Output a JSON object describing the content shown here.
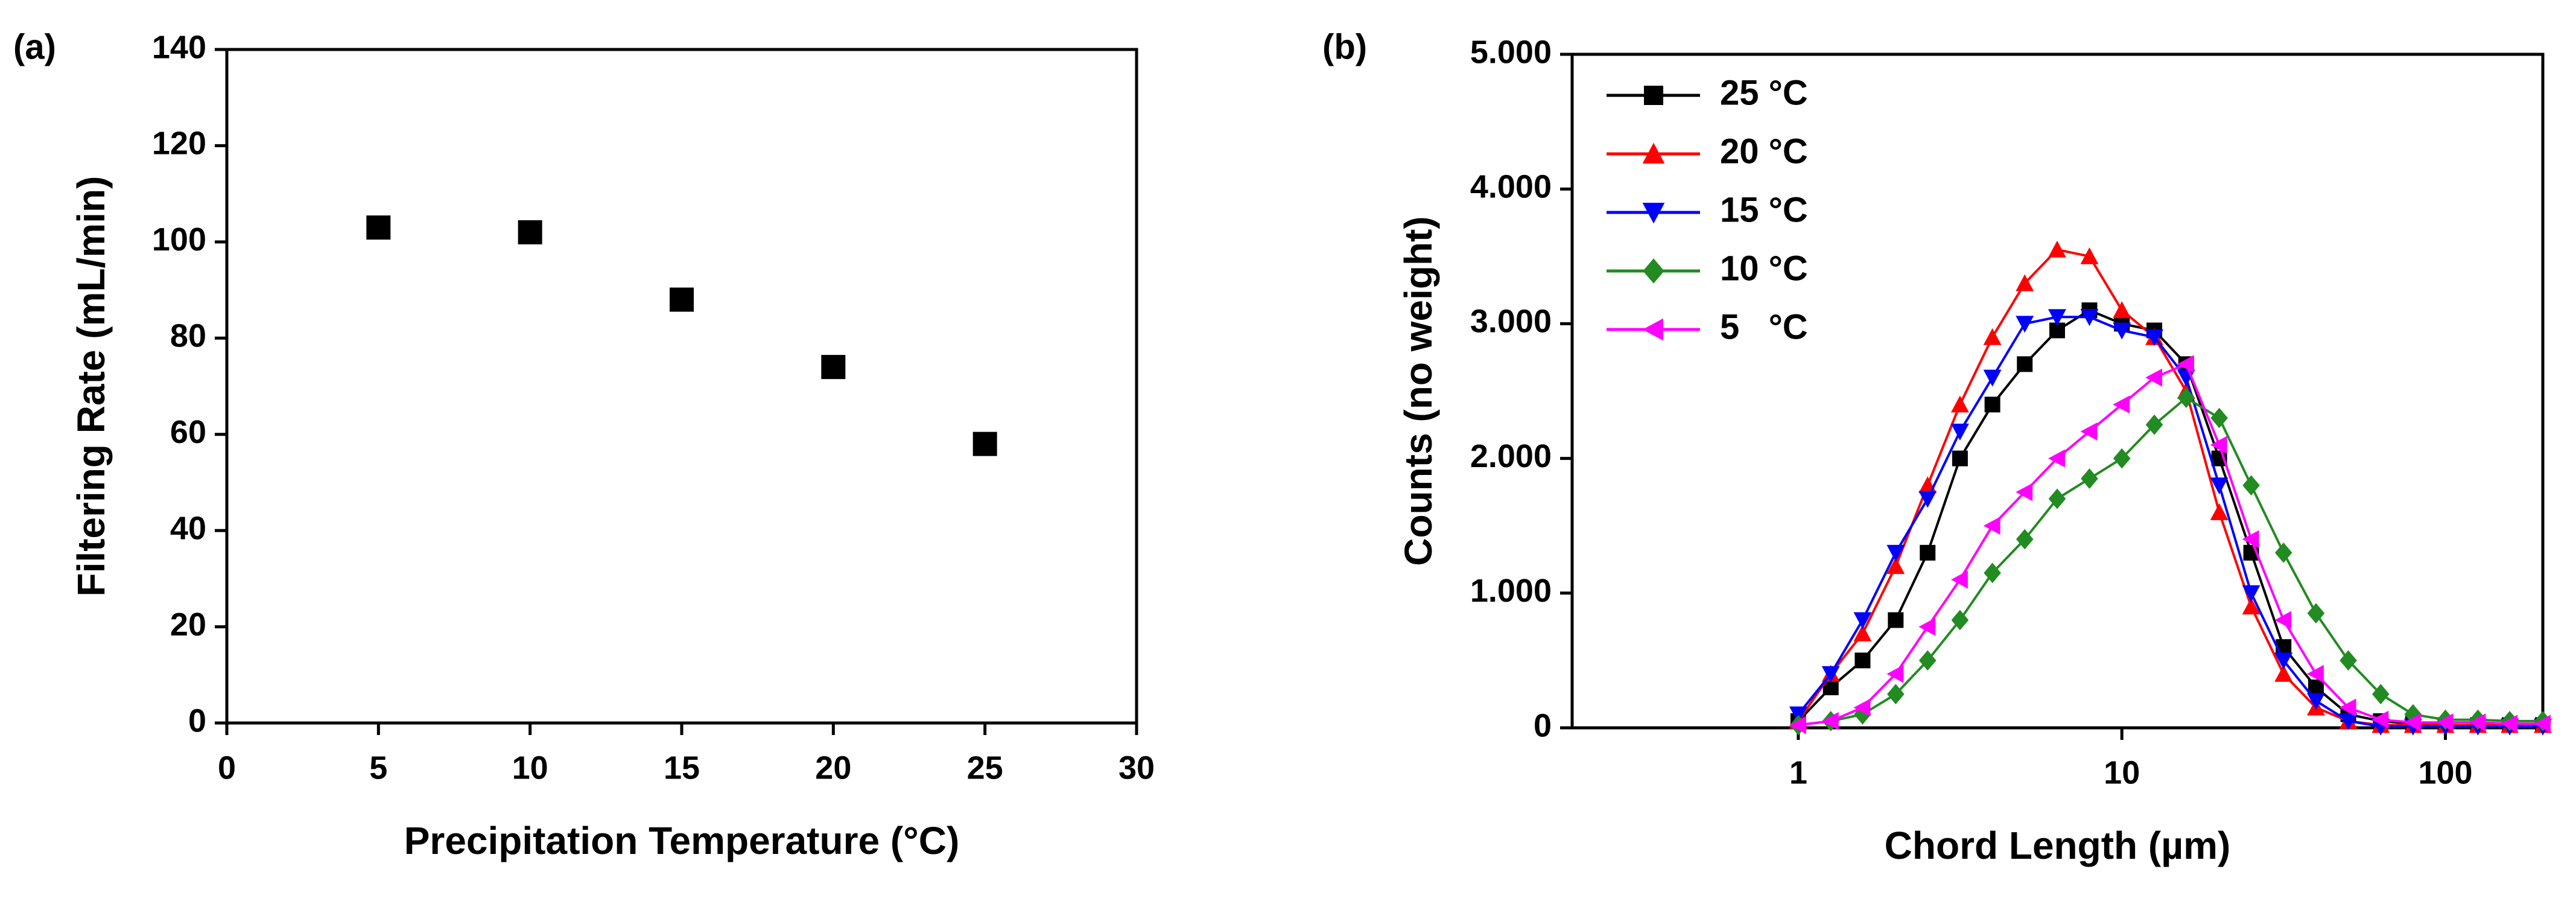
{
  "chart_data": [
    {
      "type": "scatter",
      "label": "(a)",
      "x_label": "Precipitation Temperature (°C)",
      "y_label": "Filtering Rate (mL/min)",
      "x": [
        5,
        10,
        15,
        20,
        25
      ],
      "values": [
        103,
        102,
        88,
        74,
        58
      ],
      "color": "#000000",
      "marker": "square",
      "xlim": [
        0,
        30
      ],
      "xticks": [
        0,
        5,
        10,
        15,
        20,
        25,
        30
      ],
      "ylim": [
        0,
        140
      ],
      "yticks": [
        0,
        20,
        40,
        60,
        80,
        100,
        120,
        140
      ]
    },
    {
      "type": "line",
      "label": "(b)",
      "x_label": "Chord Length (µm)",
      "y_label": "Counts (no weight)",
      "xscale": "log",
      "legend": "upper left",
      "x": [
        1,
        1.26,
        1.58,
        2,
        2.51,
        3.16,
        3.98,
        5.01,
        6.31,
        7.94,
        10,
        12.6,
        15.8,
        20,
        25.1,
        31.6,
        39.8,
        50.1,
        63.1,
        79.4,
        100,
        126,
        158,
        200
      ],
      "series": [
        {
          "name": "25 °C",
          "color": "#000000",
          "marker": "square",
          "values": [
            50,
            300,
            500,
            800,
            1300,
            2000,
            2400,
            2700,
            2950,
            3100,
            3000,
            2950,
            2700,
            2000,
            1300,
            600,
            300,
            100,
            50,
            30,
            20,
            20,
            20,
            20
          ]
        },
        {
          "name": "20 °C",
          "color": "#ff0000",
          "marker": "triangle-up",
          "values": [
            50,
            400,
            700,
            1200,
            1800,
            2400,
            2900,
            3300,
            3550,
            3500,
            3100,
            2900,
            2500,
            1600,
            900,
            400,
            150,
            50,
            20,
            20,
            20,
            20,
            20,
            20
          ]
        },
        {
          "name": "15 °C",
          "color": "#0000ff",
          "marker": "triangle-down",
          "values": [
            100,
            400,
            800,
            1300,
            1700,
            2200,
            2600,
            3000,
            3050,
            3050,
            2950,
            2900,
            2600,
            1800,
            1000,
            500,
            200,
            50,
            10,
            10,
            10,
            10,
            10,
            10
          ]
        },
        {
          "name": "10 °C",
          "color": "#228b22",
          "marker": "diamond",
          "values": [
            20,
            50,
            100,
            250,
            500,
            800,
            1150,
            1400,
            1700,
            1850,
            2000,
            2250,
            2450,
            2300,
            1800,
            1300,
            850,
            500,
            250,
            100,
            60,
            60,
            50,
            50
          ]
        },
        {
          "name": "5   °C",
          "color": "#ff00ff",
          "marker": "triangle-left",
          "values": [
            20,
            50,
            150,
            400,
            750,
            1100,
            1500,
            1750,
            2000,
            2200,
            2400,
            2600,
            2700,
            2100,
            1400,
            800,
            400,
            150,
            60,
            40,
            40,
            40,
            30,
            30
          ]
        }
      ],
      "xlim": [
        0.2,
        200
      ],
      "xticks": [
        1,
        10,
        100
      ],
      "ylim": [
        0,
        5000
      ],
      "yticks": [
        0,
        {
          "value": 1000,
          "label": "1.000"
        },
        {
          "value": 2000,
          "label": "2.000"
        },
        {
          "value": 3000,
          "label": "3.000"
        },
        {
          "value": 4000,
          "label": "4.000"
        },
        {
          "value": 5000,
          "label": "5.000"
        }
      ]
    }
  ]
}
